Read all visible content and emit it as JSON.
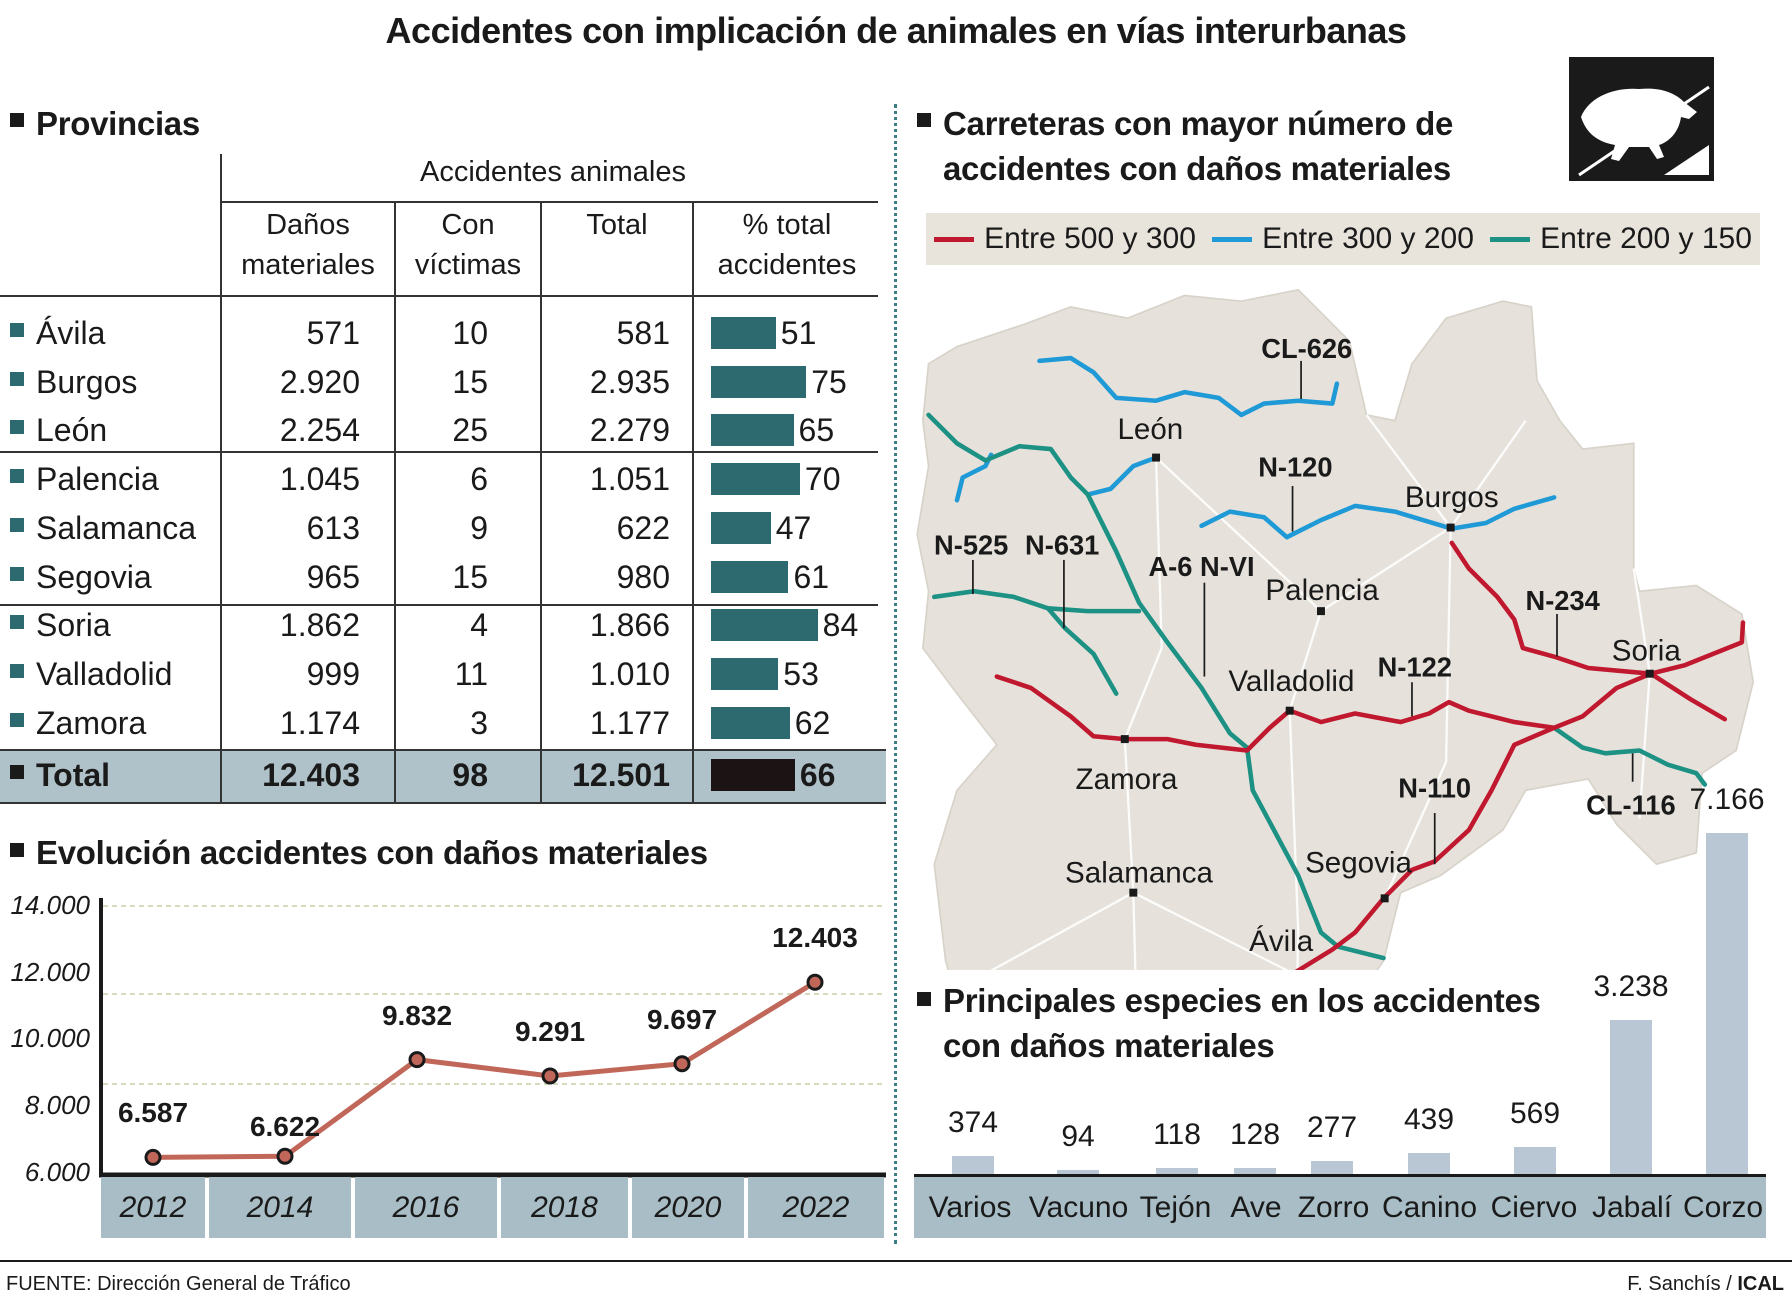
{
  "title": "Accidentes con implicación de animales en vías interurbanas",
  "provincias": {
    "heading": "Provincias",
    "group_header": "Accidentes animales",
    "columns": [
      "Daños materiales",
      "Con víctimas",
      "Total",
      "% total accidentes"
    ],
    "rows": [
      {
        "name": "Ávila",
        "danos": "571",
        "victimas": "10",
        "total": "581",
        "pct": 51
      },
      {
        "name": "Burgos",
        "danos": "2.920",
        "victimas": "15",
        "total": "2.935",
        "pct": 75
      },
      {
        "name": "León",
        "danos": "2.254",
        "victimas": "25",
        "total": "2.279",
        "pct": 65
      },
      {
        "name": "Palencia",
        "danos": "1.045",
        "victimas": "6",
        "total": "1.051",
        "pct": 70
      },
      {
        "name": "Salamanca",
        "danos": "613",
        "victimas": "9",
        "total": "622",
        "pct": 47
      },
      {
        "name": "Segovia",
        "danos": "965",
        "victimas": "15",
        "total": "980",
        "pct": 61
      },
      {
        "name": "Soria",
        "danos": "1.862",
        "victimas": "4",
        "total": "1.866",
        "pct": 84
      },
      {
        "name": "Valladolid",
        "danos": "999",
        "victimas": "11",
        "total": "1.010",
        "pct": 53
      },
      {
        "name": "Zamora",
        "danos": "1.174",
        "victimas": "3",
        "total": "1.177",
        "pct": 62
      }
    ],
    "total": {
      "name": "Total",
      "danos": "12.403",
      "victimas": "98",
      "total": "12.501",
      "pct": 66
    }
  },
  "chart_data": [
    {
      "type": "line",
      "title": "Evolución accidentes con daños materiales",
      "x": [
        "2012",
        "2014",
        "2016",
        "2018",
        "2020",
        "2022"
      ],
      "values": [
        6587,
        6622,
        9832,
        9291,
        9697,
        12403
      ],
      "labels": [
        "6.587",
        "6.622",
        "9.832",
        "9.291",
        "9.697",
        "12.403"
      ],
      "yticks": [
        "14.000",
        "12.000",
        "10.000",
        "8.000",
        "6.000"
      ],
      "ylim": [
        6000,
        14000
      ],
      "color": "#c0675a"
    },
    {
      "type": "bar",
      "title": "Principales especies en los accidentes con daños materiales",
      "categories": [
        "Varios",
        "Vacuno",
        "Tejón",
        "Ave",
        "Zorro",
        "Canino",
        "Ciervo",
        "Jabalí",
        "Corzo"
      ],
      "values": [
        374,
        94,
        118,
        128,
        277,
        439,
        569,
        3238,
        7166
      ],
      "labels": [
        "374",
        "94",
        "118",
        "128",
        "277",
        "439",
        "569",
        "3.238",
        "7.166"
      ],
      "color": "#b9c7d4"
    }
  ],
  "map": {
    "heading_line1": "Carreteras con mayor número de",
    "heading_line2": "accidentes con daños materiales",
    "legend": [
      {
        "label": "Entre 500 y 300",
        "color": "#c0182e"
      },
      {
        "label": "Entre 300 y 200",
        "color": "#1f9ad6"
      },
      {
        "label": "Entre 200 y 150",
        "color": "#1c9184"
      }
    ],
    "cities": [
      "León",
      "Burgos",
      "Palencia",
      "Valladolid",
      "Zamora",
      "Salamanca",
      "Segovia",
      "Ávila",
      "Soria"
    ],
    "roads": [
      "CL-626",
      "N-120",
      "N-525",
      "N-631",
      "A-6 N-VI",
      "N-234",
      "N-122",
      "N-110",
      "CL-116"
    ]
  },
  "footer": {
    "source": "FUENTE: Dirección General de Tráfico",
    "author": "F. Sanchís / ",
    "agency": "ICAL"
  },
  "colors": {
    "teal": "#2d6a70",
    "band": "#a8bdc5",
    "total_bg": "#b0c2c9"
  }
}
